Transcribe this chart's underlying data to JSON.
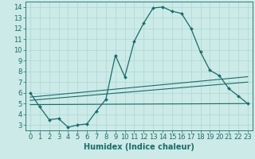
{
  "xlabel": "Humidex (Indice chaleur)",
  "background_color": "#cceae7",
  "line_color": "#1a6b6b",
  "xlim": [
    -0.5,
    23.5
  ],
  "ylim": [
    2.5,
    14.5
  ],
  "yticks": [
    3,
    4,
    5,
    6,
    7,
    8,
    9,
    10,
    11,
    12,
    13,
    14
  ],
  "xticks": [
    0,
    1,
    2,
    3,
    4,
    5,
    6,
    7,
    8,
    9,
    10,
    11,
    12,
    13,
    14,
    15,
    16,
    17,
    18,
    19,
    20,
    21,
    22,
    23
  ],
  "main_series": {
    "x": [
      0,
      1,
      2,
      3,
      4,
      5,
      6,
      7,
      8,
      9,
      10,
      11,
      12,
      13,
      14,
      15,
      16,
      17,
      18,
      19,
      20,
      21,
      22,
      23
    ],
    "y": [
      6.0,
      4.7,
      3.5,
      3.6,
      2.8,
      3.0,
      3.1,
      4.3,
      5.4,
      9.5,
      7.5,
      10.8,
      12.5,
      13.9,
      14.0,
      13.6,
      13.4,
      12.0,
      9.8,
      8.1,
      7.6,
      6.4,
      5.7,
      5.0
    ]
  },
  "flat_lines": [
    {
      "x": [
        0,
        23
      ],
      "y": [
        5.6,
        7.5
      ]
    },
    {
      "x": [
        0,
        23
      ],
      "y": [
        5.3,
        7.0
      ]
    },
    {
      "x": [
        0,
        23
      ],
      "y": [
        4.9,
        5.0
      ]
    }
  ],
  "grid_color": "#aad8d5",
  "tick_fontsize": 6,
  "xlabel_fontsize": 7,
  "figsize": [
    3.2,
    2.0
  ],
  "dpi": 100
}
